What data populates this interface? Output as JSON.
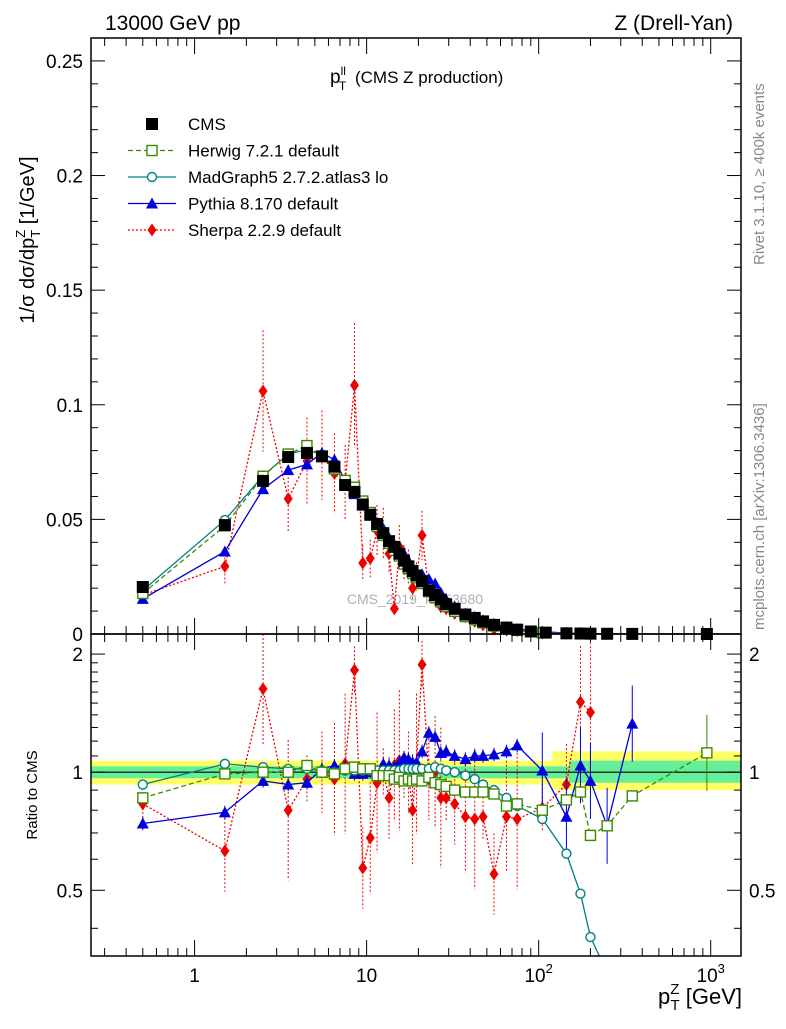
{
  "header": {
    "left": "13000 GeV pp",
    "right": "Z (Drell-Yan)"
  },
  "side_labels": {
    "rivet": "Rivet 3.1.10, ≥ 400k events",
    "mcplots": "mcplots.cern.ch [arXiv:1306.3436]"
  },
  "watermark": "CMS_2019_I1753680",
  "colors": {
    "cms": "#000000",
    "herwig": "#3a8a00",
    "madgraph": "#008080",
    "pythia": "#0000dd",
    "sherpa": "#ee0000",
    "band_inner": "#66ee99",
    "band_outer": "#ffff66"
  },
  "chart_data": [
    {
      "type": "line",
      "panel": "main",
      "title_main": "p",
      "title_sup": "ll",
      "title_sub": "T",
      "title_rest": " (CMS Z production)",
      "ylabel": "1/σ dσ/dp",
      "ylabel_sup": "Z",
      "ylabel_sub": "T",
      "ylabel_unit": " [1/GeV]",
      "xscale": "log",
      "xlim": [
        0.25,
        1500
      ],
      "ylim": [
        0,
        0.26
      ],
      "yticks": [
        0,
        0.05,
        0.1,
        0.15,
        0.2,
        0.25
      ],
      "ytick_labels": [
        "0",
        "0.05",
        "0.1",
        "0.15",
        "0.2",
        "0.25"
      ],
      "legend_position": "top-left",
      "series": [
        {
          "name": "CMS",
          "key": "cms",
          "marker": "square-filled",
          "x": [
            0.5,
            1.5,
            2.5,
            3.5,
            4.5,
            5.5,
            6.5,
            7.5,
            8.5,
            9.5,
            10.5,
            11.5,
            12.5,
            13.5,
            14.5,
            15.5,
            16.5,
            17.5,
            18.5,
            19.5,
            21,
            23,
            25,
            27,
            29,
            32.5,
            37.5,
            42.5,
            47.5,
            55,
            65,
            75,
            90,
            110,
            145,
            175,
            200,
            250,
            350,
            950
          ],
          "y": [
            0.0205,
            0.0475,
            0.0668,
            0.0772,
            0.079,
            0.0775,
            0.073,
            0.065,
            0.062,
            0.0565,
            0.052,
            0.048,
            0.044,
            0.0405,
            0.038,
            0.035,
            0.032,
            0.0295,
            0.0275,
            0.0255,
            0.023,
            0.019,
            0.017,
            0.015,
            0.013,
            0.011,
            0.0085,
            0.007,
            0.0055,
            0.004,
            0.0028,
            0.0019,
            0.0011,
            0.0006,
            0.0003,
            0.0002,
            0.00015,
            0.0001,
            5e-05,
            3e-06
          ]
        },
        {
          "name": "Herwig 7.2.1 default",
          "key": "herwig",
          "marker": "square-open",
          "dashed": true,
          "x": [
            0.5,
            1.5,
            2.5,
            3.5,
            4.5,
            5.5,
            6.5,
            7.5,
            8.5,
            9.5,
            10.5,
            11.5,
            12.5,
            13.5,
            14.5,
            15.5,
            16.5,
            17.5,
            18.5,
            19.5,
            21,
            23,
            25,
            27,
            29,
            32.5,
            37.5,
            42.5,
            47.5,
            55,
            65,
            75,
            105,
            145,
            175,
            200,
            250,
            350,
            950
          ],
          "y": [
            0.0177,
            0.0472,
            0.0688,
            0.0785,
            0.0822,
            0.0775,
            0.072,
            0.067,
            0.064,
            0.058,
            0.053,
            0.047,
            0.043,
            0.0395,
            0.0365,
            0.034,
            0.0305,
            0.0285,
            0.0265,
            0.0245,
            0.022,
            0.0185,
            0.016,
            0.014,
            0.012,
            0.0099,
            0.0076,
            0.0062,
            0.0049,
            0.0035,
            0.0023,
            0.0016,
            0.0005,
            0.00026,
            0.00018,
            0.0001,
            8e-05,
            4e-05,
            3e-06
          ]
        },
        {
          "name": "MadGraph5 2.7.2.atlas3 lo",
          "key": "madgraph",
          "marker": "circle-open",
          "x": [
            0.5,
            1.5,
            2.5,
            3.5,
            4.5,
            5.5,
            6.5,
            7.5,
            8.5,
            9.5,
            10.5,
            11.5,
            12.5,
            13.5,
            14.5,
            15.5,
            16.5,
            17.5,
            18.5,
            19.5,
            21,
            23,
            25,
            27,
            29,
            32.5,
            37.5,
            42.5,
            47.5,
            55,
            65,
            75,
            105,
            145,
            175,
            200
          ],
          "y": [
            0.019,
            0.0497,
            0.069,
            0.0785,
            0.0805,
            0.078,
            0.073,
            0.066,
            0.0625,
            0.057,
            0.0525,
            0.0485,
            0.0445,
            0.041,
            0.0385,
            0.0355,
            0.0325,
            0.03,
            0.028,
            0.026,
            0.0235,
            0.0195,
            0.0175,
            0.0153,
            0.0132,
            0.011,
            0.0083,
            0.0067,
            0.0051,
            0.0036,
            0.0024,
            0.0016,
            0.0005,
            0.0002,
            0.0001,
            6e-05
          ]
        },
        {
          "name": "Pythia 8.170 default",
          "key": "pythia",
          "marker": "triangle-filled",
          "x": [
            0.5,
            1.5,
            2.5,
            3.5,
            4.5,
            5.5,
            6.5,
            7.5,
            8.5,
            9.5,
            10.5,
            11.5,
            12.5,
            13.5,
            14.5,
            15.5,
            16.5,
            17.5,
            18.5,
            19.5,
            21,
            23,
            25,
            27,
            29,
            32.5,
            37.5,
            42.5,
            47.5,
            55,
            65,
            75,
            105,
            145,
            175,
            200,
            250,
            350
          ],
          "y": [
            0.0153,
            0.036,
            0.0632,
            0.0715,
            0.074,
            0.079,
            0.076,
            0.067,
            0.061,
            0.056,
            0.052,
            0.048,
            0.046,
            0.042,
            0.039,
            0.037,
            0.035,
            0.032,
            0.029,
            0.027,
            0.026,
            0.024,
            0.022,
            0.018,
            0.015,
            0.012,
            0.009,
            0.0075,
            0.006,
            0.0044,
            0.0031,
            0.0022,
            0.0011,
            0.0004,
            0.0002,
            0.0001,
            8e-05,
            7e-05
          ]
        },
        {
          "name": "Sherpa 2.2.9 default",
          "key": "sherpa",
          "marker": "diamond-filled",
          "dotted": true,
          "x": [
            0.5,
            1.5,
            2.5,
            3.5,
            4.5,
            5.5,
            6.5,
            7.5,
            8.5,
            9.5,
            10.5,
            11.5,
            12.5,
            13.5,
            14.5,
            15.5,
            16.5,
            17.5,
            18.5,
            19.5,
            21,
            23,
            25,
            27,
            29,
            32.5,
            37.5,
            42.5,
            47.5,
            55,
            65,
            75,
            105,
            145,
            175,
            200
          ],
          "y": [
            0.017,
            0.0295,
            0.106,
            0.059,
            0.0755,
            0.078,
            0.07,
            0.066,
            0.1085,
            0.031,
            0.033,
            0.045,
            0.044,
            0.035,
            0.011,
            0.038,
            0.031,
            0.0295,
            0.02,
            0.025,
            0.043,
            0.019,
            0.016,
            0.012,
            0.011,
            0.009,
            0.0075,
            0.0055,
            0.004,
            0.0022,
            0.0017,
            0.0014,
            0.0005,
            0.0003,
            0.0003,
            0.0001
          ]
        }
      ]
    },
    {
      "type": "line",
      "panel": "ratio",
      "ylabel": "Ratio to CMS",
      "xlabel": "p",
      "xlabel_sup": "Z",
      "xlabel_sub": "T",
      "xlabel_unit": " [GeV]",
      "xscale": "log",
      "xlim": [
        0.25,
        1500
      ],
      "ylim": [
        0.34,
        2.25
      ],
      "yticks": [
        0.5,
        1,
        2
      ],
      "ytick_labels": [
        "0.5",
        "1",
        "2"
      ],
      "xtick_labels": [
        "1",
        "10",
        "10",
        "10"
      ],
      "xtick_sup": [
        "",
        "",
        "2",
        "3"
      ],
      "series": [
        {
          "key": "herwig",
          "x": [
            0.5,
            1.5,
            2.5,
            3.5,
            4.5,
            5.5,
            6.5,
            7.5,
            8.5,
            9.5,
            10.5,
            11.5,
            12.5,
            13.5,
            14.5,
            15.5,
            16.5,
            17.5,
            18.5,
            19.5,
            21,
            23,
            25,
            27,
            29,
            32.5,
            37.5,
            42.5,
            47.5,
            55,
            65,
            75,
            105,
            145,
            175,
            200,
            250,
            350,
            950
          ],
          "y": [
            0.86,
            0.99,
            1.0,
            1.0,
            1.04,
            1.0,
            0.99,
            1.02,
            1.03,
            1.02,
            1.02,
            0.98,
            0.98,
            0.98,
            0.96,
            0.97,
            0.95,
            0.96,
            0.95,
            0.96,
            0.95,
            0.97,
            0.94,
            0.93,
            0.92,
            0.9,
            0.89,
            0.89,
            0.89,
            0.88,
            0.82,
            0.83,
            0.8,
            0.85,
            0.89,
            0.69,
            0.73,
            0.87,
            1.12
          ]
        },
        {
          "key": "madgraph",
          "x": [
            0.5,
            1.5,
            2.5,
            3.5,
            4.5,
            5.5,
            6.5,
            7.5,
            8.5,
            9.5,
            10.5,
            11.5,
            12.5,
            13.5,
            14.5,
            15.5,
            16.5,
            17.5,
            18.5,
            19.5,
            21,
            23,
            25,
            27,
            29,
            32.5,
            37.5,
            42.5,
            47.5,
            55,
            65,
            75,
            105,
            145,
            175,
            200,
            225
          ],
          "y": [
            0.93,
            1.05,
            1.03,
            1.02,
            1.02,
            1.01,
            1.0,
            1.01,
            1.01,
            1.01,
            1.01,
            1.01,
            1.01,
            1.01,
            1.01,
            1.01,
            1.02,
            1.02,
            1.02,
            1.02,
            1.02,
            1.02,
            1.03,
            1.02,
            1.01,
            1.0,
            0.98,
            0.96,
            0.93,
            0.9,
            0.86,
            0.82,
            0.76,
            0.62,
            0.49,
            0.38,
            0.31
          ]
        },
        {
          "key": "pythia",
          "x": [
            0.5,
            1.5,
            2.5,
            3.5,
            4.5,
            5.5,
            6.5,
            7.5,
            8.5,
            9.5,
            10.5,
            11.5,
            12.5,
            13.5,
            14.5,
            15.5,
            16.5,
            17.5,
            18.5,
            19.5,
            21,
            23,
            25,
            27,
            29,
            32.5,
            37.5,
            42.5,
            47.5,
            55,
            65,
            75,
            105,
            145,
            175,
            200,
            250,
            350
          ],
          "y": [
            0.74,
            0.79,
            0.95,
            0.93,
            0.94,
            1.02,
            1.04,
            1.03,
            0.99,
            0.99,
            1.0,
            1.0,
            1.05,
            1.04,
            1.03,
            1.06,
            1.09,
            1.08,
            1.06,
            1.06,
            1.13,
            1.26,
            1.23,
            1.12,
            1.13,
            1.1,
            1.08,
            1.1,
            1.1,
            1.11,
            1.13,
            1.17,
            1.01,
            0.77,
            1.04,
            0.95,
            0.73,
            1.33
          ]
        },
        {
          "key": "sherpa",
          "x": [
            0.5,
            1.5,
            2.5,
            3.5,
            4.5,
            5.5,
            6.5,
            7.5,
            8.5,
            9.5,
            10.5,
            11.5,
            12.5,
            13.5,
            14.5,
            15.5,
            16.5,
            17.5,
            18.5,
            19.5,
            21,
            23,
            25,
            27,
            29,
            32.5,
            37.5,
            42.5,
            47.5,
            55,
            65,
            75,
            105,
            145,
            175,
            200
          ],
          "y": [
            0.83,
            0.63,
            1.63,
            0.8,
            0.96,
            1.0,
            0.96,
            1.05,
            1.82,
            0.57,
            0.68,
            0.94,
            1.0,
            0.86,
            1.04,
            1.07,
            0.98,
            1.0,
            0.8,
            1.05,
            1.88,
            0.96,
            1.0,
            0.86,
            0.86,
            0.83,
            0.77,
            0.76,
            0.77,
            0.55,
            0.77,
            0.76,
            0.81,
            0.93,
            1.51,
            1.42
          ]
        }
      ]
    }
  ]
}
